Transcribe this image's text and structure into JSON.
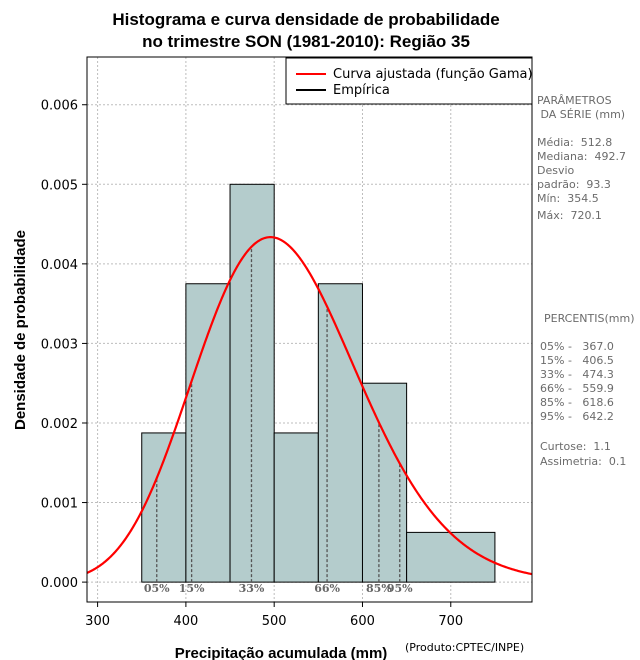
{
  "chart_data": {
    "type": "bar",
    "title_line1": "Histograma e curva densidade de probabilidade",
    "title_line2": "no trimestre SON (1981-2010): Região 35",
    "xlabel": "Precipitação acumulada (mm)",
    "ylabel": "Densidade de probabilidade",
    "credit": "(Produto:CPTEC/INPE)",
    "xlim": [
      288,
      792
    ],
    "ylim": [
      -0.00025,
      0.0066
    ],
    "x_ticks": [
      300,
      400,
      500,
      600,
      700
    ],
    "y_ticks": [
      0.0,
      0.001,
      0.002,
      0.003,
      0.004,
      0.005,
      0.006
    ],
    "y_tick_labels": [
      "0.000",
      "0.001",
      "0.002",
      "0.003",
      "0.004",
      "0.005",
      "0.006"
    ],
    "bin_edges": [
      350,
      400,
      450,
      500,
      550,
      600,
      650,
      750
    ],
    "bin_density": [
      0.001875,
      0.00375,
      0.005,
      0.001875,
      0.00375,
      0.0025,
      0.000625
    ],
    "bar_color": "#b4cccc",
    "curve_color": "#ff0000",
    "gamma_fit": {
      "mean": 512.8,
      "sd": 93.3
    },
    "legend": [
      "Curva ajustada (função Gama)",
      "Empírica"
    ],
    "legend_position": "top-right",
    "grid": true,
    "percentiles": [
      {
        "label": "05%",
        "value": 367.0
      },
      {
        "label": "15%",
        "value": 406.5
      },
      {
        "label": "33%",
        "value": 474.3
      },
      {
        "label": "66%",
        "value": 559.9
      },
      {
        "label": "85%",
        "value": 618.6
      },
      {
        "label": "95%",
        "value": 642.2
      }
    ]
  },
  "stats_panel": {
    "lines": [
      "PARÂMETROS",
      " DA SÉRIE (mm)",
      "",
      "Média:  512.8",
      "Mediana:  492.7",
      "Desvio",
      "padrão:  93.3",
      "Mín:  354.5",
      "Máx:  720.1"
    ]
  },
  "percentile_panel": {
    "lines": [
      "PERCENTIS(mm)",
      "",
      "05% -   367.0",
      "15% -   406.5",
      "33% -   474.3",
      "66% -   559.9",
      "85% -   618.6",
      "95% -   642.2",
      "",
      "Curtose:  1.1",
      "Assimetria:  0.1"
    ]
  }
}
